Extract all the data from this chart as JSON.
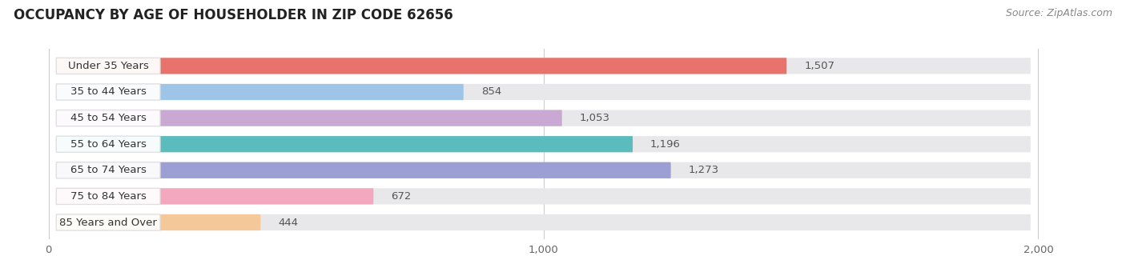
{
  "title": "OCCUPANCY BY AGE OF HOUSEHOLDER IN ZIP CODE 62656",
  "source": "Source: ZipAtlas.com",
  "categories": [
    "Under 35 Years",
    "35 to 44 Years",
    "45 to 54 Years",
    "55 to 64 Years",
    "65 to 74 Years",
    "75 to 84 Years",
    "85 Years and Over"
  ],
  "values": [
    1507,
    854,
    1053,
    1196,
    1273,
    672,
    444
  ],
  "bar_colors": [
    "#e8736c",
    "#9ec4e8",
    "#c9a8d4",
    "#5bbcbe",
    "#9b9fd4",
    "#f4a8bf",
    "#f5c89a"
  ],
  "xlim": [
    0,
    2000
  ],
  "xticks": [
    0,
    1000,
    2000
  ],
  "background_color": "#ffffff",
  "bar_bg_color": "#e8e8ea",
  "title_fontsize": 12,
  "label_fontsize": 9.5,
  "value_fontsize": 9.5,
  "source_fontsize": 9
}
